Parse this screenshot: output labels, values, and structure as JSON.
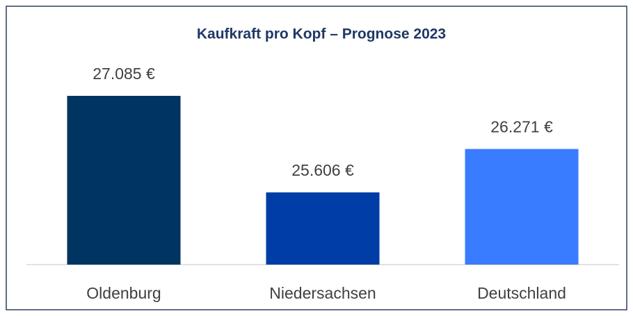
{
  "chart_data": {
    "type": "bar",
    "title": "Kaufkraft pro Kopf – Prognose 2023",
    "categories": [
      "Oldenburg",
      "Niedersachsen",
      "Deutschland"
    ],
    "values": [
      27085,
      25606,
      26271
    ],
    "value_labels": [
      "27.085 €",
      "25.606 €",
      "26.271 €"
    ],
    "colors": [
      "#003561",
      "#003da6",
      "#3a7cff"
    ],
    "ylim": [
      24500,
      27500
    ]
  }
}
